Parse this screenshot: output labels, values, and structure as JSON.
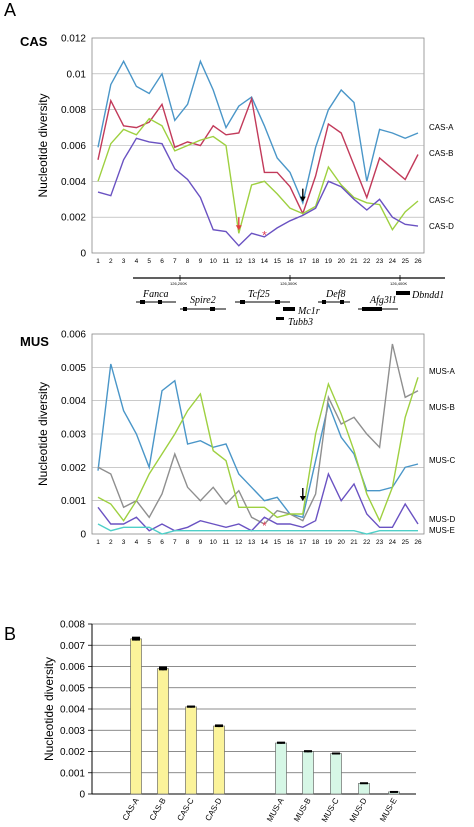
{
  "panel_labels": {
    "a": "A",
    "b": "B"
  },
  "groups": {
    "cas": "CAS",
    "mus": "MUS"
  },
  "chart_data": [
    {
      "type": "line",
      "group": "CAS",
      "ylabel": "Nucleotide diversity",
      "ylim": [
        0,
        0.012
      ],
      "yticks": [
        "0",
        "0.002",
        "0.004",
        "0.006",
        "0.008",
        "0.01",
        "0.012"
      ],
      "x": [
        1,
        2,
        3,
        4,
        5,
        6,
        7,
        8,
        9,
        10,
        11,
        12,
        13,
        14,
        15,
        16,
        17,
        18,
        19,
        20,
        21,
        22,
        23,
        24,
        25,
        26
      ],
      "series": [
        {
          "name": "CAS-A",
          "color": "#4a96c8",
          "values": [
            0.0059,
            0.0094,
            0.0107,
            0.0093,
            0.0089,
            0.01,
            0.0074,
            0.0083,
            0.0107,
            0.0091,
            0.007,
            0.0082,
            0.0087,
            0.0071,
            0.0053,
            0.0045,
            0.0028,
            0.0059,
            0.008,
            0.0091,
            0.0084,
            0.004,
            0.0069,
            0.0067,
            0.0064,
            0.0067
          ]
        },
        {
          "name": "CAS-B",
          "color": "#c23a5a",
          "values": [
            0.0052,
            0.0085,
            0.0071,
            0.007,
            0.0073,
            0.0083,
            0.0059,
            0.0062,
            0.006,
            0.0071,
            0.0066,
            0.0067,
            0.0086,
            0.0045,
            0.0045,
            0.0037,
            0.0022,
            0.0043,
            0.0072,
            0.0067,
            0.0049,
            0.0031,
            0.0053,
            0.0047,
            0.0041,
            0.0055
          ]
        },
        {
          "name": "CAS-C",
          "color": "#9ed040",
          "values": [
            0.004,
            0.0061,
            0.0069,
            0.0066,
            0.0075,
            0.0071,
            0.0057,
            0.006,
            0.0063,
            0.0065,
            0.006,
            0.0011,
            0.0038,
            0.004,
            0.0033,
            0.0025,
            0.0022,
            0.0026,
            0.0048,
            0.0038,
            0.0031,
            0.0028,
            0.0027,
            0.0013,
            0.0023,
            0.0029
          ]
        },
        {
          "name": "CAS-D",
          "color": "#6a52c2",
          "values": [
            0.0034,
            0.0032,
            0.0052,
            0.0064,
            0.0062,
            0.0061,
            0.0047,
            0.0041,
            0.0031,
            0.0013,
            0.0012,
            0.0004,
            0.0011,
            0.0009,
            0.0014,
            0.0018,
            0.0021,
            0.0025,
            0.004,
            0.0037,
            0.003,
            0.0024,
            0.003,
            0.002,
            0.0016,
            0.0015
          ]
        }
      ],
      "annotations": {
        "asterisk": "*"
      }
    },
    {
      "type": "line",
      "group": "MUS",
      "ylabel": "Nucleotide diversity",
      "ylim": [
        0,
        0.006
      ],
      "yticks": [
        "0",
        "0.001",
        "0.002",
        "0.003",
        "0.004",
        "0.005",
        "0.006"
      ],
      "x": [
        1,
        2,
        3,
        4,
        5,
        6,
        7,
        8,
        9,
        10,
        11,
        12,
        13,
        14,
        15,
        16,
        17,
        18,
        19,
        20,
        21,
        22,
        23,
        24,
        25,
        26
      ],
      "series": [
        {
          "name": "MUS-A",
          "color": "#4a96c8",
          "values": [
            0.0019,
            0.0051,
            0.0037,
            0.003,
            0.002,
            0.0043,
            0.0046,
            0.0027,
            0.0028,
            0.0026,
            0.0027,
            0.0018,
            0.0014,
            0.001,
            0.0011,
            0.0006,
            0.0005,
            0.0022,
            0.0039,
            0.0029,
            0.0024,
            0.0013,
            0.0013,
            0.0014,
            0.002,
            0.0021
          ]
        },
        {
          "name": "MUS-B",
          "color": "#8f8f8f",
          "values": [
            0.002,
            0.0018,
            0.0008,
            0.001,
            0.0005,
            0.0012,
            0.0024,
            0.0014,
            0.001,
            0.0014,
            0.0009,
            0.0013,
            0.0005,
            0.0003,
            0.0007,
            0.0006,
            0.0004,
            0.0012,
            0.0041,
            0.0033,
            0.0035,
            0.003,
            0.0026,
            0.0057,
            0.0041,
            0.0043
          ]
        },
        {
          "name": "MUS-C",
          "color": "#9ed040",
          "values": [
            0.0011,
            0.0009,
            0.0004,
            0.001,
            0.0018,
            0.0024,
            0.003,
            0.0037,
            0.0042,
            0.0025,
            0.0022,
            0.0008,
            0.0008,
            0.0008,
            0.0005,
            0.0006,
            0.0006,
            0.003,
            0.0045,
            0.0036,
            0.0025,
            0.0012,
            0.0004,
            0.0014,
            0.0035,
            0.0047
          ]
        },
        {
          "name": "MUS-D",
          "color": "#6a52c2",
          "values": [
            0.0008,
            0.0003,
            0.0003,
            0.0005,
            0.0001,
            0.0003,
            0.0001,
            0.0002,
            0.0004,
            0.0003,
            0.0002,
            0.0003,
            0.0001,
            0.0005,
            0.0003,
            0.0003,
            0.0002,
            0.0004,
            0.0018,
            0.001,
            0.0015,
            0.0006,
            0.0002,
            0.0002,
            0.0009,
            0.0003
          ]
        },
        {
          "name": "MUS-E",
          "color": "#4ecfc8",
          "values": [
            0.0003,
            0.0001,
            0.0002,
            0.0002,
            0.0002,
            0.0,
            0.0001,
            0.0001,
            0.0001,
            0.0001,
            0.0001,
            0.0001,
            0.0001,
            0.0001,
            0.0001,
            0.0001,
            0.0001,
            0.0001,
            0.0001,
            0.0001,
            0.0001,
            0.0,
            0.0001,
            0.0001,
            0.0001,
            0.0001
          ]
        }
      ],
      "annotations": {
        "asterisk": "*"
      }
    },
    {
      "type": "bar",
      "ylabel": "Nucleotide diversity",
      "ylim": [
        0,
        0.008
      ],
      "yticks": [
        "0",
        "0.001",
        "0.002",
        "0.003",
        "0.004",
        "0.005",
        "0.006",
        "0.007",
        "0.008"
      ],
      "categories": [
        "CAS-A",
        "CAS-B",
        "CAS-C",
        "CAS-D",
        "MUS-A",
        "MUS-B",
        "MUS-C",
        "MUS-D",
        "MUS-E"
      ],
      "values": [
        0.0073,
        0.0059,
        0.0041,
        0.0032,
        0.0024,
        0.002,
        0.0019,
        0.0005,
        0.0001
      ],
      "errors": [
        8e-05,
        8e-05,
        4e-05,
        5e-05,
        4e-05,
        4e-05,
        3e-05,
        3e-05,
        2e-05
      ],
      "colors": {
        "CAS": "#fbf39a",
        "MUS": "#d6f7e6"
      }
    }
  ],
  "gene_map": {
    "coordinates": [
      "126,200K",
      "126,300K",
      "126,400K"
    ],
    "genes": [
      "Fanca",
      "Spire2",
      "Tcf25",
      "Mc1r",
      "Tubb3",
      "Def8",
      "Afg3l1",
      "Dbndd1"
    ]
  }
}
